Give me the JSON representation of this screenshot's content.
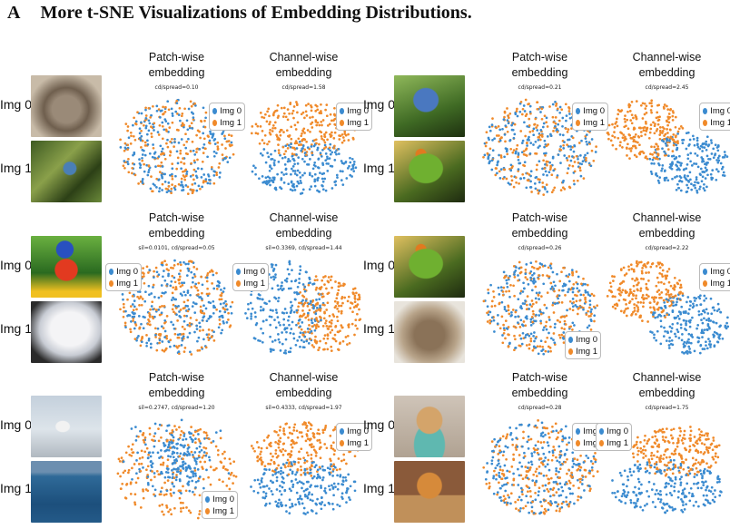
{
  "section": {
    "letter": "A",
    "title": "More t-SNE Visualizations of Embedding Distributions."
  },
  "colors": {
    "img0": "#3b8bd0",
    "img1": "#f08a2a"
  },
  "legend": {
    "img0": "Img 0",
    "img1": "Img 1"
  },
  "labels": {
    "img0": "Img 0",
    "img1": "Img 1"
  },
  "plot_titles": {
    "patch": "Patch-wise embedding",
    "channel": "Channel-wise embedding"
  },
  "panels": [
    {
      "id": "p1",
      "thumbs": [
        "kitten",
        "bird-in-plant"
      ],
      "patch": {
        "stat": "cd/spread=0.10",
        "layout": "mixed",
        "legend": "top-right"
      },
      "channel": {
        "stat": "cd/spread=1.58",
        "layout": "top-bottom",
        "legend": "top-right"
      }
    },
    {
      "id": "p2",
      "thumbs": [
        "blue-jay",
        "parrot"
      ],
      "patch": {
        "stat": "cd/spread=0.21",
        "layout": "mixed",
        "legend": "top-right"
      },
      "channel": {
        "stat": "cd/spread=2.45",
        "layout": "diagonal",
        "legend": "top-right"
      }
    },
    {
      "id": "p3",
      "thumbs": [
        "rainbow-lorikeet",
        "white-kitten"
      ],
      "patch": {
        "stat": "sil=0.0101, cd/spread=0.05",
        "layout": "mixed",
        "legend": "top-left"
      },
      "channel": {
        "stat": "sil=0.3369, cd/spread=1.44",
        "layout": "left-right",
        "legend": "top-left"
      }
    },
    {
      "id": "p4",
      "thumbs": [
        "parrot",
        "tabby-cat"
      ],
      "patch": {
        "stat": "cd/spread=0.26",
        "layout": "mixed",
        "legend": "bottom-right"
      },
      "channel": {
        "stat": "cd/spread=2.22",
        "layout": "diagonal",
        "legend": "top-right"
      }
    },
    {
      "id": "p5",
      "thumbs": [
        "snow-bird",
        "sea"
      ],
      "patch": {
        "stat": "sil=0.2747, cd/spread=1.20",
        "layout": "center-ring",
        "legend": "bottom-right"
      },
      "channel": {
        "stat": "sil=0.4333, cd/spread=1.97",
        "layout": "top-bottom",
        "legend": "top-right"
      }
    },
    {
      "id": "p6",
      "thumbs": [
        "chihuahua",
        "cat-in-box"
      ],
      "patch": {
        "stat": "cd/spread=0.28",
        "layout": "mixed",
        "legend": "top-right"
      },
      "channel": {
        "stat": "cd/spread=1.75",
        "layout": "top-bottom-orange",
        "legend": "top-left"
      }
    }
  ]
}
